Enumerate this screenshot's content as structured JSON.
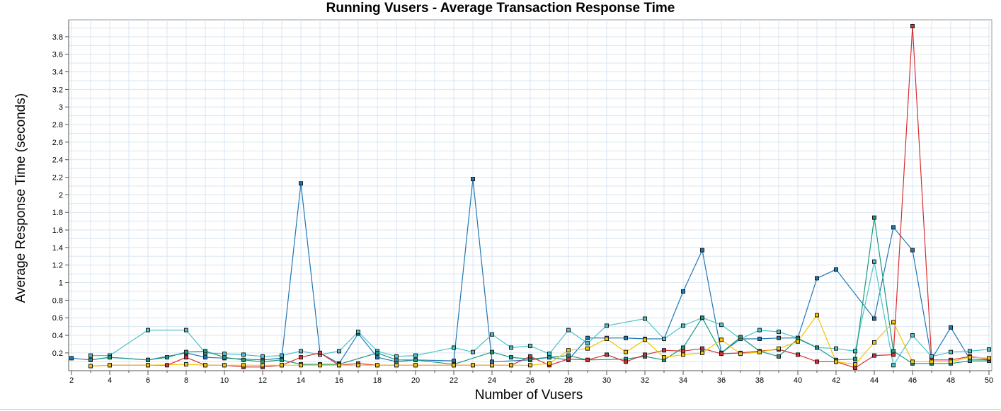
{
  "chart_data": {
    "type": "line",
    "title": "Running Vusers - Average Transaction Response Time",
    "xlabel": "Number of Vusers",
    "ylabel": "Average Response Time (seconds)",
    "xlim": [
      2,
      50
    ],
    "ylim": [
      0.03,
      3.92
    ],
    "x_ticks": [
      2,
      4,
      6,
      8,
      10,
      12,
      14,
      16,
      18,
      20,
      22,
      24,
      26,
      28,
      30,
      32,
      34,
      36,
      38,
      40,
      42,
      44,
      46,
      48,
      50
    ],
    "y_ticks": [
      0.2,
      0.4,
      0.6,
      0.8,
      1,
      1.2,
      1.4,
      1.6,
      1.8,
      2,
      2.2,
      2.4,
      2.6,
      2.8,
      3,
      3.2,
      3.4,
      3.6,
      3.8
    ],
    "grid": true,
    "legend": "none",
    "series": [
      {
        "color": "#1f77b4",
        "points": [
          [
            2,
            0.14
          ],
          [
            3,
            0.12
          ],
          [
            4,
            0.15
          ],
          [
            6,
            0.12
          ],
          [
            8,
            0.2
          ],
          [
            9,
            0.15
          ],
          [
            10,
            0.14
          ],
          [
            12,
            0.12
          ],
          [
            13,
            0.14
          ],
          [
            14,
            2.13
          ],
          [
            15,
            0.2
          ],
          [
            16,
            0.08
          ],
          [
            17,
            0.42
          ],
          [
            18,
            0.15
          ],
          [
            19,
            0.1
          ],
          [
            20,
            0.12
          ],
          [
            22,
            0.11
          ],
          [
            23,
            2.18
          ],
          [
            24,
            0.1
          ],
          [
            26,
            0.12
          ],
          [
            27,
            0.15
          ],
          [
            28,
            0.12
          ],
          [
            29,
            0.37
          ],
          [
            30,
            0.37
          ],
          [
            31,
            0.37
          ],
          [
            32,
            0.36
          ],
          [
            33,
            0.36
          ],
          [
            34,
            0.9
          ],
          [
            35,
            1.37
          ],
          [
            36,
            0.2
          ],
          [
            37,
            0.36
          ],
          [
            38,
            0.36
          ],
          [
            39,
            0.37
          ],
          [
            40,
            0.37
          ],
          [
            41,
            1.05
          ],
          [
            42,
            1.15
          ],
          [
            44,
            0.59
          ],
          [
            45,
            1.63
          ],
          [
            46,
            1.37
          ],
          [
            47,
            0.13
          ],
          [
            48,
            0.49
          ],
          [
            49,
            0.13
          ],
          [
            50,
            0.12
          ]
        ]
      },
      {
        "color": "#4cc3c8",
        "points": [
          [
            3,
            0.17
          ],
          [
            4,
            0.17
          ],
          [
            6,
            0.46
          ],
          [
            8,
            0.46
          ],
          [
            9,
            0.2
          ],
          [
            10,
            0.19
          ],
          [
            11,
            0.18
          ],
          [
            12,
            0.16
          ],
          [
            13,
            0.17
          ],
          [
            14,
            0.22
          ],
          [
            15,
            0.18
          ],
          [
            16,
            0.22
          ],
          [
            17,
            0.44
          ],
          [
            18,
            0.22
          ],
          [
            19,
            0.16
          ],
          [
            20,
            0.17
          ],
          [
            22,
            0.26
          ],
          [
            23,
            0.21
          ],
          [
            24,
            0.41
          ],
          [
            25,
            0.26
          ],
          [
            26,
            0.28
          ],
          [
            27,
            0.19
          ],
          [
            28,
            0.46
          ],
          [
            29,
            0.31
          ],
          [
            30,
            0.51
          ],
          [
            32,
            0.59
          ],
          [
            33,
            0.36
          ],
          [
            34,
            0.51
          ],
          [
            35,
            0.6
          ],
          [
            36,
            0.52
          ],
          [
            37,
            0.36
          ],
          [
            38,
            0.46
          ],
          [
            39,
            0.44
          ],
          [
            40,
            0.37
          ],
          [
            41,
            0.26
          ],
          [
            42,
            0.25
          ],
          [
            43,
            0.22
          ],
          [
            44,
            1.24
          ],
          [
            45,
            0.06
          ],
          [
            46,
            0.4
          ],
          [
            47,
            0.16
          ],
          [
            48,
            0.21
          ],
          [
            49,
            0.22
          ],
          [
            50,
            0.24
          ]
        ]
      },
      {
        "color": "#1a9a80",
        "points": [
          [
            3,
            0.12
          ],
          [
            4,
            0.15
          ],
          [
            6,
            0.12
          ],
          [
            7,
            0.15
          ],
          [
            8,
            0.21
          ],
          [
            9,
            0.22
          ],
          [
            10,
            0.15
          ],
          [
            11,
            0.12
          ],
          [
            12,
            0.1
          ],
          [
            13,
            0.12
          ],
          [
            14,
            0.07
          ],
          [
            15,
            0.07
          ],
          [
            16,
            0.07
          ],
          [
            18,
            0.2
          ],
          [
            19,
            0.12
          ],
          [
            20,
            0.12
          ],
          [
            22,
            0.07
          ],
          [
            24,
            0.21
          ],
          [
            25,
            0.15
          ],
          [
            26,
            0.13
          ],
          [
            27,
            0.15
          ],
          [
            28,
            0.17
          ],
          [
            29,
            0.12
          ],
          [
            31,
            0.13
          ],
          [
            32,
            0.16
          ],
          [
            33,
            0.12
          ],
          [
            34,
            0.26
          ],
          [
            35,
            0.6
          ],
          [
            36,
            0.2
          ],
          [
            37,
            0.38
          ],
          [
            38,
            0.22
          ],
          [
            39,
            0.16
          ],
          [
            40,
            0.36
          ],
          [
            41,
            0.26
          ],
          [
            42,
            0.12
          ],
          [
            43,
            0.13
          ],
          [
            44,
            1.74
          ],
          [
            45,
            0.22
          ],
          [
            46,
            0.08
          ],
          [
            47,
            0.08
          ],
          [
            48,
            0.08
          ],
          [
            49,
            0.11
          ],
          [
            50,
            0.11
          ]
        ]
      },
      {
        "color": "#d62f2f",
        "points": [
          [
            3,
            0.05
          ],
          [
            4,
            0.06
          ],
          [
            6,
            0.06
          ],
          [
            7,
            0.06
          ],
          [
            8,
            0.15
          ],
          [
            9,
            0.06
          ],
          [
            10,
            0.06
          ],
          [
            11,
            0.04
          ],
          [
            12,
            0.04
          ],
          [
            13,
            0.06
          ],
          [
            14,
            0.15
          ],
          [
            15,
            0.2
          ],
          [
            16,
            0.06
          ],
          [
            17,
            0.08
          ],
          [
            18,
            0.06
          ],
          [
            19,
            0.06
          ],
          [
            20,
            0.06
          ],
          [
            22,
            0.06
          ],
          [
            23,
            0.06
          ],
          [
            24,
            0.06
          ],
          [
            25,
            0.06
          ],
          [
            26,
            0.16
          ],
          [
            27,
            0.06
          ],
          [
            28,
            0.13
          ],
          [
            29,
            0.12
          ],
          [
            30,
            0.18
          ],
          [
            31,
            0.1
          ],
          [
            32,
            0.18
          ],
          [
            33,
            0.23
          ],
          [
            34,
            0.22
          ],
          [
            35,
            0.25
          ],
          [
            36,
            0.19
          ],
          [
            37,
            0.2
          ],
          [
            38,
            0.22
          ],
          [
            39,
            0.24
          ],
          [
            40,
            0.18
          ],
          [
            41,
            0.1
          ],
          [
            42,
            0.1
          ],
          [
            43,
            0.03
          ],
          [
            44,
            0.17
          ],
          [
            45,
            0.18
          ],
          [
            46,
            3.92
          ],
          [
            47,
            0.12
          ],
          [
            48,
            0.12
          ],
          [
            49,
            0.16
          ],
          [
            50,
            0.13
          ]
        ]
      },
      {
        "color": "#f5c400",
        "points": [
          [
            3,
            0.05
          ],
          [
            4,
            0.06
          ],
          [
            6,
            0.06
          ],
          [
            8,
            0.07
          ],
          [
            9,
            0.06
          ],
          [
            10,
            0.06
          ],
          [
            11,
            0.06
          ],
          [
            12,
            0.06
          ],
          [
            13,
            0.06
          ],
          [
            14,
            0.06
          ],
          [
            15,
            0.06
          ],
          [
            16,
            0.06
          ],
          [
            17,
            0.06
          ],
          [
            18,
            0.06
          ],
          [
            19,
            0.06
          ],
          [
            20,
            0.06
          ],
          [
            22,
            0.06
          ],
          [
            23,
            0.06
          ],
          [
            24,
            0.06
          ],
          [
            25,
            0.06
          ],
          [
            26,
            0.06
          ],
          [
            27,
            0.08
          ],
          [
            28,
            0.23
          ],
          [
            29,
            0.25
          ],
          [
            30,
            0.36
          ],
          [
            31,
            0.21
          ],
          [
            32,
            0.35
          ],
          [
            33,
            0.15
          ],
          [
            34,
            0.18
          ],
          [
            35,
            0.2
          ],
          [
            36,
            0.35
          ],
          [
            37,
            0.19
          ],
          [
            38,
            0.21
          ],
          [
            39,
            0.25
          ],
          [
            40,
            0.33
          ],
          [
            41,
            0.63
          ],
          [
            42,
            0.1
          ],
          [
            43,
            0.07
          ],
          [
            44,
            0.32
          ],
          [
            45,
            0.55
          ],
          [
            46,
            0.1
          ],
          [
            47,
            0.1
          ],
          [
            48,
            0.1
          ],
          [
            49,
            0.15
          ],
          [
            50,
            0.14
          ]
        ]
      }
    ]
  }
}
